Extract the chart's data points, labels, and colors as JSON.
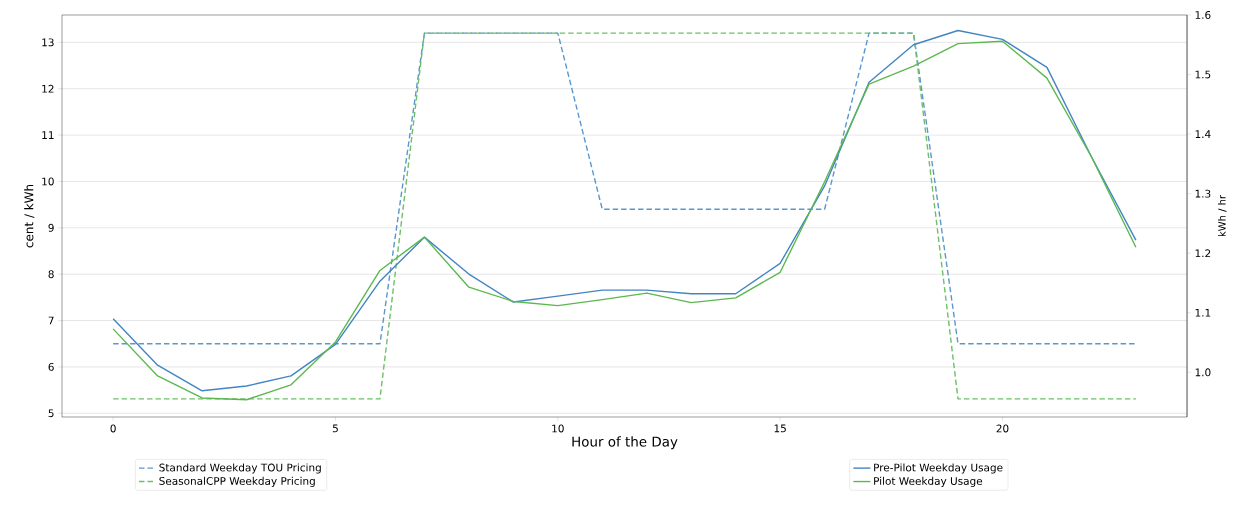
{
  "chart_data": {
    "type": "line",
    "xlabel": "Hour of the Day",
    "ylabel": "cent / kWh",
    "y2label": "kWh / hr",
    "x": [
      0,
      1,
      2,
      3,
      4,
      5,
      6,
      7,
      8,
      9,
      10,
      11,
      12,
      13,
      14,
      15,
      16,
      17,
      18,
      19,
      20,
      21,
      22,
      23
    ],
    "series": [
      {
        "name": "Standard Weekday TOU Pricing",
        "color": "#5b97cc",
        "line_style": "dashed",
        "values": [
          6.5,
          6.5,
          6.5,
          6.5,
          6.5,
          6.5,
          6.5,
          13.2,
          13.2,
          13.2,
          13.2,
          9.4,
          9.4,
          9.4,
          9.4,
          9.4,
          9.4,
          13.2,
          13.2,
          6.5,
          6.5,
          6.5,
          6.5,
          6.5
        ]
      },
      {
        "name": "SeasonalCPP Weekday Pricing",
        "color": "#6cc067",
        "line_style": "dashed",
        "values": [
          5.31,
          5.31,
          5.31,
          5.31,
          5.31,
          5.31,
          5.31,
          13.2,
          13.2,
          13.2,
          13.2,
          13.2,
          13.2,
          13.2,
          13.2,
          13.2,
          13.2,
          13.2,
          13.2,
          5.31,
          5.31,
          5.31,
          5.31,
          5.31
        ]
      },
      {
        "name": "Pre-Pilot Weekday Usage",
        "color": "#4285c2",
        "axis": "y2",
        "line_style": "solid",
        "values": [
          1.09,
          1.012,
          0.969,
          0.977,
          0.994,
          1.047,
          1.153,
          1.227,
          1.165,
          1.118,
          1.128,
          1.138,
          1.138,
          1.132,
          1.132,
          1.183,
          1.313,
          1.487,
          1.55,
          1.574,
          1.559,
          1.512,
          1.362,
          1.222
        ]
      },
      {
        "name": "Pilot Weekday Usage",
        "color": "#5cb84e",
        "axis": "y2",
        "line_style": "solid",
        "values": [
          1.073,
          0.994,
          0.957,
          0.954,
          0.979,
          1.051,
          1.171,
          1.227,
          1.143,
          1.119,
          1.112,
          1.122,
          1.133,
          1.117,
          1.125,
          1.168,
          1.32,
          1.484,
          1.514,
          1.552,
          1.556,
          1.494,
          1.362,
          1.21
        ]
      }
    ],
    "xlim": [
      -1.15,
      24.15
    ],
    "ylim": [
      4.92,
      13.59
    ],
    "y2lim": [
      0.925,
      1.6
    ],
    "xticks": [
      0,
      5,
      10,
      15,
      20
    ],
    "yticks": [
      5,
      6,
      7,
      8,
      9,
      10,
      11,
      12,
      13
    ],
    "y2ticks": [
      {
        "value": 1.0,
        "label": "1.0"
      },
      1.1,
      1.2,
      1.3,
      1.4,
      1.5,
      1.6
    ],
    "grid": "y",
    "legend": "bottom"
  }
}
